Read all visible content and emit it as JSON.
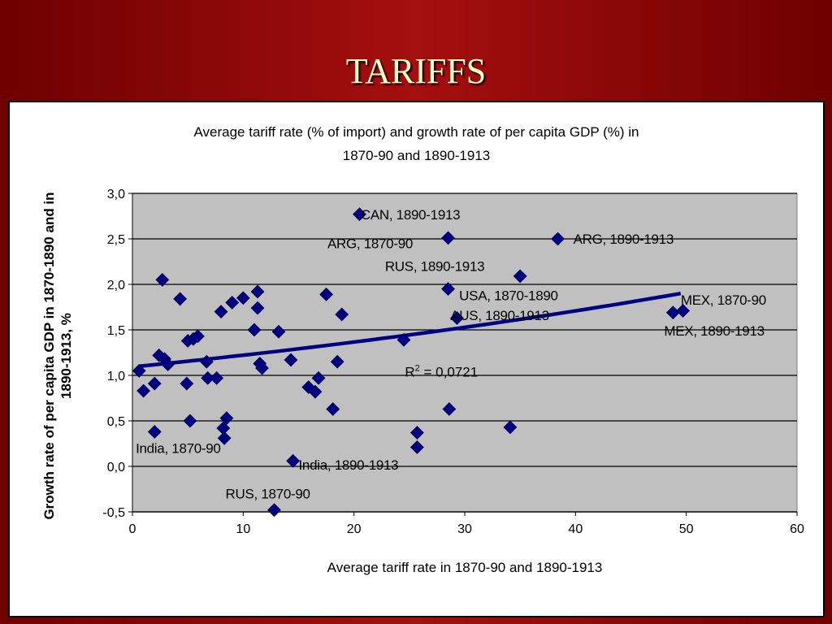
{
  "slide": {
    "title": "TARIFFS"
  },
  "chart_data": {
    "type": "scatter",
    "title_line1": "Average tariff rate (% of import) and growth rate of per capita GDP (%)  in",
    "title_line2": "1870-90 and 1890-1913",
    "xlabel": "Average tariff rate in 1870-90 and 1890-1913",
    "ylabel": "Growth rate of per capita GDP in 1870-1890 and in 1890-1913, %",
    "xlim": [
      0,
      60
    ],
    "ylim": [
      -0.5,
      3.0
    ],
    "x_ticks": [
      "0",
      "10",
      "20",
      "30",
      "40",
      "50",
      "60"
    ],
    "y_ticks": [
      "-0,5",
      "0,0",
      "0,5",
      "1,0",
      "1,5",
      "2,0",
      "2,5",
      "3,0"
    ],
    "grid": true,
    "marker": "diamond",
    "colors": {
      "marker": "#000080",
      "trendline": "#000080",
      "plot_bg": "#c0c0c0"
    },
    "points": [
      [
        0.6,
        1.05
      ],
      [
        1.0,
        0.83
      ],
      [
        2.0,
        0.91
      ],
      [
        2.0,
        0.38
      ],
      [
        2.4,
        1.22
      ],
      [
        2.7,
        2.05
      ],
      [
        2.9,
        1.18
      ],
      [
        3.2,
        1.12
      ],
      [
        4.3,
        1.84
      ],
      [
        4.9,
        0.91
      ],
      [
        5.0,
        1.38
      ],
      [
        5.2,
        0.5
      ],
      [
        5.5,
        1.4
      ],
      [
        5.9,
        1.43
      ],
      [
        6.7,
        1.15
      ],
      [
        6.8,
        0.97
      ],
      [
        7.6,
        0.97
      ],
      [
        8.0,
        1.7
      ],
      [
        8.2,
        0.42
      ],
      [
        8.3,
        0.31
      ],
      [
        8.5,
        0.53
      ],
      [
        9.0,
        1.8
      ],
      [
        10.0,
        1.85
      ],
      [
        11.0,
        1.5
      ],
      [
        11.3,
        1.92
      ],
      [
        11.3,
        1.74
      ],
      [
        11.5,
        1.13
      ],
      [
        11.7,
        1.08
      ],
      [
        13.2,
        1.48
      ],
      [
        14.3,
        1.17
      ],
      [
        14.5,
        0.06
      ],
      [
        15.9,
        0.87
      ],
      [
        16.5,
        0.82
      ],
      [
        16.8,
        0.97
      ],
      [
        17.5,
        1.89
      ],
      [
        18.1,
        0.63
      ],
      [
        18.5,
        1.15
      ],
      [
        18.9,
        1.67
      ],
      [
        20.5,
        2.77
      ],
      [
        24.5,
        1.39
      ],
      [
        25.7,
        0.37
      ],
      [
        25.7,
        0.21
      ],
      [
        28.5,
        2.51
      ],
      [
        28.5,
        1.95
      ],
      [
        28.6,
        0.63
      ],
      [
        29.3,
        1.63
      ],
      [
        34.1,
        0.43
      ],
      [
        35.0,
        2.09
      ],
      [
        38.4,
        2.5
      ],
      [
        48.8,
        1.69
      ],
      [
        49.7,
        1.71
      ],
      [
        12.8,
        -0.48
      ]
    ],
    "trendline": {
      "x_start": 0.6,
      "y_start": 1.1,
      "x_end": 49.5,
      "y_end": 1.9
    },
    "annotations": [
      {
        "text": "CAN, 1890-1913",
        "x": 20.6,
        "y": 2.77
      },
      {
        "text": "ARG, 1870-90",
        "x": 17.6,
        "y": 2.45
      },
      {
        "text": "ARG, 1890-1913",
        "x": 39.8,
        "y": 2.5
      },
      {
        "text": "RUS, 1890-1913",
        "x": 22.8,
        "y": 2.2
      },
      {
        "text": "USA, 1870-1890",
        "x": 29.5,
        "y": 1.88
      },
      {
        "text": "AUS, 1890-1913",
        "x": 28.7,
        "y": 1.66
      },
      {
        "text": "MEX, 1870-90",
        "x": 49.5,
        "y": 1.83
      },
      {
        "text": "MEX, 1890-1913",
        "x": 48.0,
        "y": 1.49
      },
      {
        "text": "India, 1870-90",
        "x": 0.3,
        "y": 0.2
      },
      {
        "text": "India, 1890-1913",
        "x": 15.0,
        "y": 0.02
      },
      {
        "text": "RUS, 1870-90",
        "x": 8.4,
        "y": -0.3
      }
    ],
    "r2_label": {
      "r": "R",
      "sup": "2",
      "rest": " = 0,0721",
      "x": 24.6,
      "y": 1.04
    }
  }
}
